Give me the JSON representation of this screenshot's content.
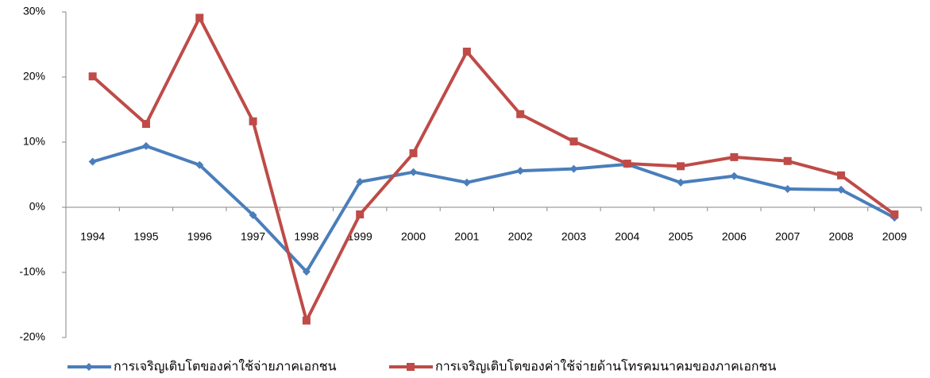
{
  "chart_data": {
    "type": "line",
    "categories": [
      "1994",
      "1995",
      "1996",
      "1997",
      "1998",
      "1999",
      "2000",
      "2001",
      "2002",
      "2003",
      "2004",
      "2005",
      "2006",
      "2007",
      "2008",
      "2009"
    ],
    "series": [
      {
        "name": "การเจริญเติบโตของค่าใช้จ่ายภาคเอกชน",
        "color": "#4a7ebb",
        "marker": "diamond",
        "values": [
          7.0,
          9.4,
          6.5,
          -1.2,
          -9.9,
          3.9,
          5.4,
          3.8,
          5.6,
          5.9,
          6.6,
          3.8,
          4.8,
          2.8,
          2.7,
          -1.6
        ]
      },
      {
        "name": "การเจริญเติบโตของค่าใช้จ่ายด้านโทรคมนาคมของภาคเอกชน",
        "color": "#be4b48",
        "marker": "square",
        "values": [
          20.1,
          12.8,
          29.1,
          13.2,
          -17.4,
          -1.1,
          8.3,
          23.9,
          14.3,
          10.1,
          6.7,
          6.3,
          7.7,
          7.1,
          4.9,
          -1.1
        ]
      }
    ],
    "ylim": [
      -20,
      30
    ],
    "yticks": [
      {
        "value": -20,
        "label": "-20%"
      },
      {
        "value": -10,
        "label": "-10%"
      },
      {
        "value": 0,
        "label": "0%"
      },
      {
        "value": 10,
        "label": "10%"
      },
      {
        "value": 20,
        "label": "20%"
      },
      {
        "value": 30,
        "label": "30%"
      }
    ],
    "grid": false,
    "legend": "bottom"
  }
}
